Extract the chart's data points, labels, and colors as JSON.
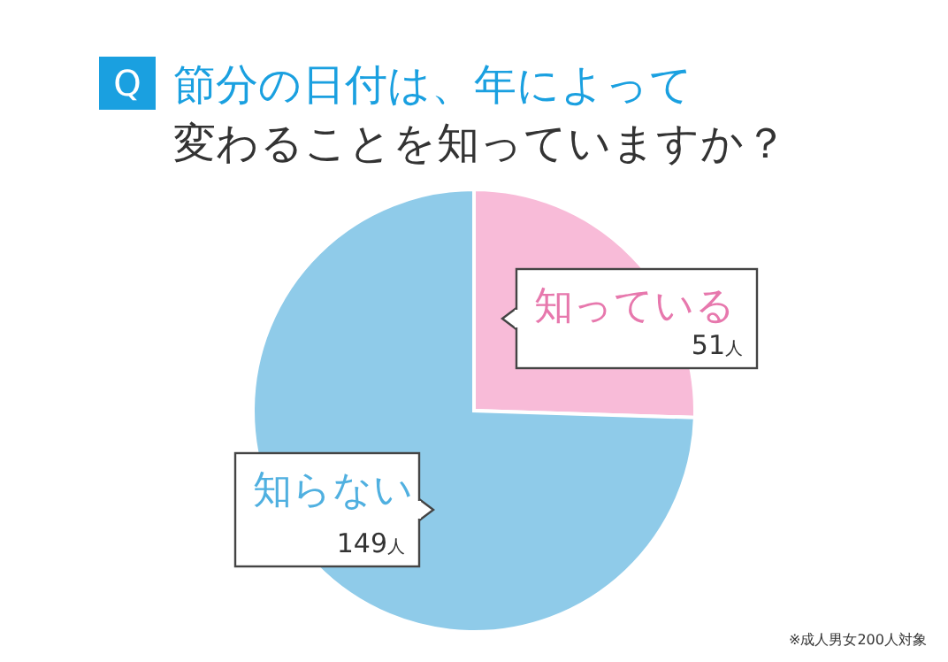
{
  "chart_data": {
    "type": "pie",
    "title": "節分の日付は、年によって変わることを知っていますか？",
    "categories": [
      "知っている",
      "知らない"
    ],
    "values": [
      51,
      149
    ],
    "colors": [
      "#f8bbd8",
      "#8fcbe9"
    ],
    "value_labels": [
      "51人",
      "149人"
    ],
    "annotations": [
      "Q",
      "※成人男女200人対象"
    ]
  }
}
